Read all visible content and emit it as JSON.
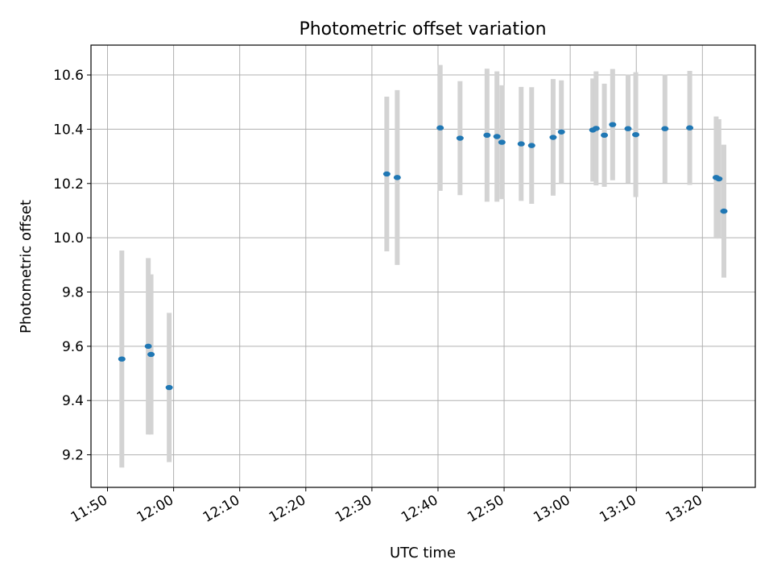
{
  "chart_data": {
    "type": "scatter",
    "title": "Photometric offset variation",
    "xlabel": "UTC time",
    "ylabel": "Photometric offset",
    "x_tick_labels": [
      "11:50",
      "12:00",
      "12:10",
      "12:20",
      "12:30",
      "12:40",
      "12:50",
      "13:00",
      "13:10",
      "13:20"
    ],
    "y_tick_labels": [
      "9.2",
      "9.4",
      "9.6",
      "9.8",
      "10.0",
      "10.2",
      "10.4",
      "10.6"
    ],
    "x_ticks": [
      "11:50",
      "12:00",
      "12:10",
      "12:20",
      "12:30",
      "12:40",
      "12:50",
      "13:00",
      "13:10",
      "13:20"
    ],
    "y_ticks": [
      9.2,
      9.4,
      9.6,
      9.8,
      10.0,
      10.2,
      10.4,
      10.6
    ],
    "xlim": [
      "11:47:30",
      "13:28:00"
    ],
    "ylim": [
      9.08,
      10.71
    ],
    "grid": true,
    "marker_color": "#1f77b4",
    "errorbar_color": "#d3d3d3",
    "points": [
      {
        "x": "11:52:10",
        "y": 9.553,
        "yerr": 0.4
      },
      {
        "x": "11:56:10",
        "y": 9.6,
        "yerr": 0.325
      },
      {
        "x": "11:56:35",
        "y": 9.57,
        "yerr": 0.295
      },
      {
        "x": "11:59:20",
        "y": 9.448,
        "yerr": 0.275
      },
      {
        "x": "12:32:15",
        "y": 10.235,
        "yerr": 0.285
      },
      {
        "x": "12:33:50",
        "y": 10.222,
        "yerr": 0.322
      },
      {
        "x": "12:40:20",
        "y": 10.405,
        "yerr": 0.232
      },
      {
        "x": "12:43:20",
        "y": 10.367,
        "yerr": 0.21
      },
      {
        "x": "12:47:25",
        "y": 10.378,
        "yerr": 0.245
      },
      {
        "x": "12:48:55",
        "y": 10.373,
        "yerr": 0.24
      },
      {
        "x": "12:49:40",
        "y": 10.352,
        "yerr": 0.21
      },
      {
        "x": "12:52:35",
        "y": 10.346,
        "yerr": 0.21
      },
      {
        "x": "12:54:10",
        "y": 10.34,
        "yerr": 0.215
      },
      {
        "x": "12:57:25",
        "y": 10.37,
        "yerr": 0.215
      },
      {
        "x": "12:58:40",
        "y": 10.39,
        "yerr": 0.19
      },
      {
        "x": "13:03:25",
        "y": 10.397,
        "yerr": 0.19
      },
      {
        "x": "13:03:55",
        "y": 10.403,
        "yerr": 0.21
      },
      {
        "x": "13:05:10",
        "y": 10.378,
        "yerr": 0.19
      },
      {
        "x": "13:06:25",
        "y": 10.417,
        "yerr": 0.205
      },
      {
        "x": "13:08:45",
        "y": 10.402,
        "yerr": 0.2
      },
      {
        "x": "13:09:55",
        "y": 10.38,
        "yerr": 0.23
      },
      {
        "x": "13:14:20",
        "y": 10.402,
        "yerr": 0.2
      },
      {
        "x": "13:18:05",
        "y": 10.405,
        "yerr": 0.21
      },
      {
        "x": "13:22:05",
        "y": 10.222,
        "yerr": 0.225
      },
      {
        "x": "13:22:30",
        "y": 10.217,
        "yerr": 0.22
      },
      {
        "x": "13:23:15",
        "y": 10.098,
        "yerr": 0.245
      }
    ]
  }
}
